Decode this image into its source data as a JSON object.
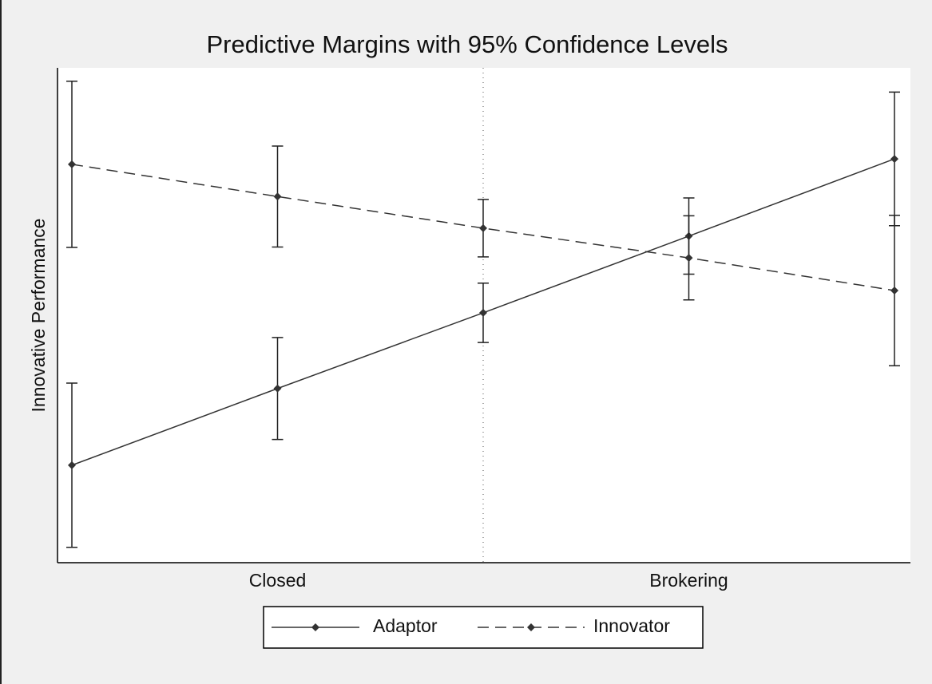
{
  "chart_data": {
    "type": "line",
    "title": "Predictive Margins with 95% Confidence Levels",
    "y_label": "Innovative Performance",
    "categories": [
      null,
      "Closed",
      null,
      "Brokering",
      null
    ],
    "ylim": [
      0,
      100
    ],
    "legend": "bottom",
    "series": [
      {
        "name": "Adaptor",
        "color": "#333333",
        "style": "solid",
        "values": [
          19.7,
          35.2,
          50.5,
          66.0,
          81.6
        ],
        "errors": [
          16.6,
          10.3,
          6.0,
          7.7,
          13.5
        ]
      },
      {
        "name": "Innovator",
        "color": "#333333",
        "style": "dashed",
        "values": [
          80.5,
          74.0,
          67.6,
          61.6,
          55.0
        ],
        "errors": [
          16.8,
          10.2,
          5.8,
          8.5,
          15.2
        ]
      }
    ]
  }
}
